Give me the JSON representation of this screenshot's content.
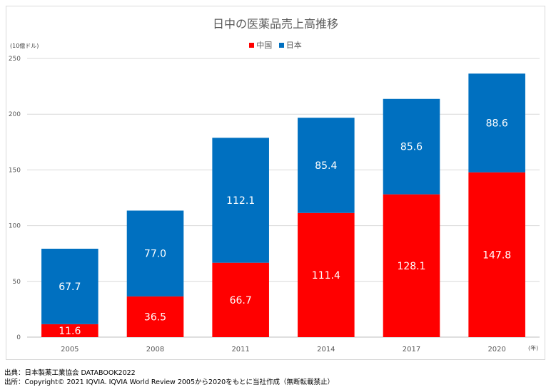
{
  "chart_data": {
    "type": "bar",
    "stacked": true,
    "title": "日中の医薬品売上高推移",
    "ylabel": "(10億ドル)",
    "xlabel": "(年)",
    "categories": [
      "2005",
      "2008",
      "2011",
      "2014",
      "2017",
      "2020"
    ],
    "series": [
      {
        "name": "中国",
        "color": "#ff0000",
        "values": [
          11.6,
          36.5,
          66.7,
          111.4,
          128.1,
          147.8
        ]
      },
      {
        "name": "日本",
        "color": "#0070c0",
        "values": [
          67.7,
          77.0,
          112.1,
          85.4,
          85.6,
          88.6
        ]
      }
    ],
    "ylim": [
      0,
      250
    ],
    "yticks": [
      0,
      50,
      100,
      150,
      200,
      250
    ],
    "grid": true,
    "legend_position": "top"
  },
  "sources": {
    "line1": "出典：日本製薬工業協会 DATABOOK2022",
    "line2": "出所：Copyright© 2021 IQVIA. IQVIA World Review 2005から2020をもとに当社作成（無断転載禁止）"
  }
}
